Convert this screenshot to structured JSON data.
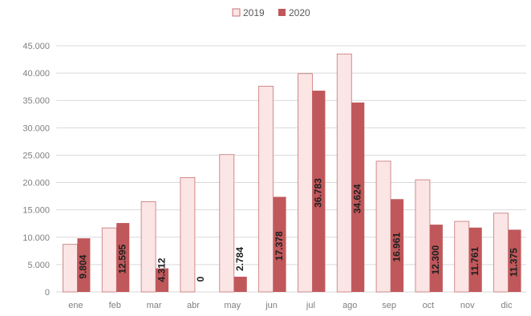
{
  "chart_data": {
    "type": "bar",
    "categories": [
      "ene",
      "feb",
      "mar",
      "abr",
      "may",
      "jun",
      "jul",
      "ago",
      "sep",
      "oct",
      "nov",
      "dic"
    ],
    "series": [
      {
        "name": "2019",
        "values": [
          8700,
          11700,
          16500,
          20900,
          25100,
          37600,
          39900,
          43500,
          23900,
          20500,
          12900,
          14400
        ],
        "color": "#fbe5e5",
        "stroke": "#c77474"
      },
      {
        "name": "2020",
        "values": [
          9804,
          12595,
          4312,
          0,
          2784,
          17378,
          36783,
          34624,
          16961,
          12300,
          11761,
          11375
        ],
        "data_labels": [
          "9.804",
          "12.595",
          "4.312",
          "0",
          "2.784",
          "17.378",
          "36.783",
          "34.624",
          "16.961",
          "12.300",
          "11.761",
          "11.375"
        ],
        "color": "#c0585b"
      }
    ],
    "yticks": [
      "0",
      "5.000",
      "10.000",
      "15.000",
      "20.000",
      "25.000",
      "30.000",
      "35.000",
      "40.000",
      "45.000"
    ],
    "ylim": [
      0,
      45000
    ],
    "grid": true,
    "legend_position": "top-center"
  }
}
